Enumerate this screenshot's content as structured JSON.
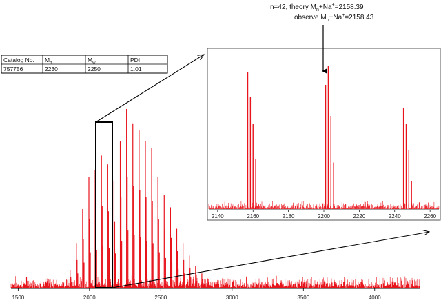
{
  "annotation": {
    "line1": {
      "prefix": "n=42, theory M",
      "sub": "n",
      "mid": "+Na",
      "sup": "+",
      "suffix": "=2158.39"
    },
    "line2": {
      "prefix": "observe M",
      "sub": "n",
      "mid": "+Na",
      "sup": "+",
      "suffix": "=2158.43"
    }
  },
  "table": {
    "headers": [
      {
        "base": "Catalog No.",
        "sub": ""
      },
      {
        "base": "M",
        "sub": "n"
      },
      {
        "base": "M",
        "sub": "w"
      },
      {
        "base": "PDI",
        "sub": ""
      }
    ],
    "row": [
      "757756",
      "2230",
      "2250",
      "1.01"
    ]
  },
  "colors": {
    "trace": "#e8141c",
    "axis": "#000000",
    "noise": "#e8141c"
  },
  "chart_data": [
    {
      "type": "line",
      "title": "",
      "xlabel": "",
      "ylabel": "",
      "xlim": [
        1450,
        4320
      ],
      "ylim": [
        0,
        1.0
      ],
      "grid": false,
      "x_ticks": [
        1500,
        2000,
        2500,
        3000,
        3500,
        4000
      ],
      "series": [
        {
          "peaks_main": [
            [
              1864,
              0.1
            ],
            [
              1908,
              0.25
            ],
            [
              1952,
              0.44
            ],
            [
              1996,
              0.62
            ],
            [
              2040,
              0.66
            ],
            [
              2084,
              0.74
            ],
            [
              2128,
              0.69
            ],
            [
              2172,
              0.6
            ],
            [
              2216,
              0.82
            ],
            [
              2260,
              1.0
            ],
            [
              2304,
              0.92
            ],
            [
              2348,
              0.88
            ],
            [
              2392,
              0.82
            ],
            [
              2436,
              0.78
            ],
            [
              2480,
              0.62
            ],
            [
              2524,
              0.52
            ],
            [
              2568,
              0.45
            ],
            [
              2612,
              0.33
            ],
            [
              2656,
              0.25
            ],
            [
              2700,
              0.18
            ],
            [
              2744,
              0.12
            ],
            [
              2788,
              0.08
            ],
            [
              2832,
              0.05
            ],
            [
              2876,
              0.03
            ]
          ],
          "peak_offsets": [
            [
              0,
              1.0
            ],
            [
              5,
              0.62
            ],
            [
              10,
              0.32
            ]
          ],
          "noise_level": 0.05
        }
      ]
    },
    {
      "type": "line",
      "title": "",
      "xlabel": "",
      "ylabel": "",
      "xlim": [
        2135,
        2265
      ],
      "ylim": [
        0,
        1.0
      ],
      "grid": false,
      "x_ticks": [
        2140,
        2160,
        2180,
        2200,
        2220,
        2240,
        2260
      ],
      "series": [
        {
          "isotope_clusters": [
            {
              "x": 2157.0,
              "intensities": [
                0.88,
                0.72,
                0.55,
                0.32
              ]
            },
            {
              "x": 2201.0,
              "intensities": [
                0.8,
                0.92,
                0.6,
                0.3
              ]
            },
            {
              "x": 2245.0,
              "intensities": [
                0.65,
                0.55,
                0.38,
                0.18
              ]
            }
          ],
          "isotope_spacing": 1.5,
          "noise_level": 0.04
        }
      ]
    }
  ]
}
